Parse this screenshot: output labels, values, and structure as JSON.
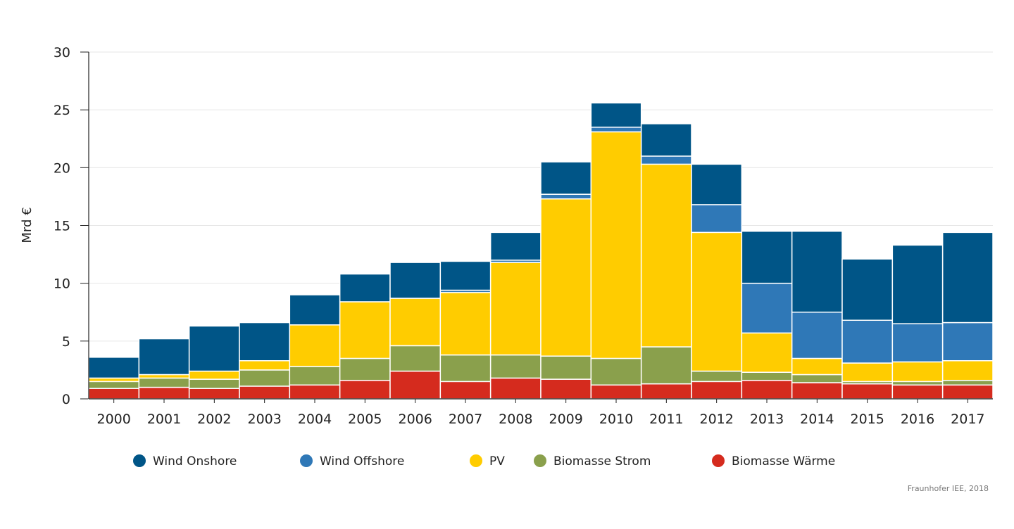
{
  "chart_data": {
    "type": "bar",
    "stacked": true,
    "title": "",
    "xlabel": "",
    "ylabel": "Mrd €",
    "ylim": [
      0,
      30
    ],
    "yticks": [
      0,
      5,
      10,
      15,
      20,
      25,
      30
    ],
    "grid": true,
    "legend_position": "bottom",
    "categories": [
      "2000",
      "2001",
      "2002",
      "2003",
      "2004",
      "2005",
      "2006",
      "2007",
      "2008",
      "2009",
      "2010",
      "2011",
      "2012",
      "2013",
      "2014",
      "2015",
      "2016",
      "2017"
    ],
    "series": [
      {
        "name": "Biomasse Wärme",
        "color": "#d52b1e",
        "values": [
          0.9,
          1.0,
          0.9,
          1.1,
          1.2,
          1.6,
          2.4,
          1.5,
          1.8,
          1.7,
          1.2,
          1.3,
          1.5,
          1.6,
          1.4,
          1.3,
          1.2,
          1.2
        ]
      },
      {
        "name": "Biomasse Strom",
        "color": "#8aa04c",
        "values": [
          0.6,
          0.8,
          0.8,
          1.4,
          1.6,
          1.9,
          2.2,
          2.3,
          2.0,
          2.0,
          2.3,
          3.2,
          0.9,
          0.7,
          0.7,
          0.2,
          0.3,
          0.4
        ]
      },
      {
        "name": "PV",
        "color": "#ffcc00",
        "values": [
          0.3,
          0.3,
          0.7,
          0.8,
          3.6,
          4.9,
          4.1,
          5.4,
          8.0,
          13.6,
          19.6,
          15.8,
          12.0,
          3.4,
          1.4,
          1.6,
          1.7,
          1.7
        ]
      },
      {
        "name": "Wind Offshore",
        "color": "#2f78b7",
        "values": [
          0,
          0,
          0,
          0,
          0,
          0,
          0,
          0.2,
          0.2,
          0.4,
          0.4,
          0.7,
          2.4,
          4.3,
          4.0,
          3.7,
          3.3,
          3.3
        ]
      },
      {
        "name": "Wind Onshore",
        "color": "#005587",
        "values": [
          1.8,
          3.1,
          3.9,
          3.3,
          2.6,
          2.4,
          3.1,
          2.5,
          2.4,
          2.8,
          2.1,
          2.8,
          3.5,
          4.5,
          7.0,
          5.3,
          6.8,
          7.8
        ]
      }
    ],
    "legend": [
      {
        "name": "Wind Onshore",
        "color": "#005587"
      },
      {
        "name": "Wind Offshore",
        "color": "#2f78b7"
      },
      {
        "name": "PV",
        "color": "#ffcc00"
      },
      {
        "name": "Biomasse Strom",
        "color": "#8aa04c"
      },
      {
        "name": "Biomasse Wärme",
        "color": "#d52b1e"
      }
    ],
    "source": "Fraunhofer IEE, 2018"
  }
}
